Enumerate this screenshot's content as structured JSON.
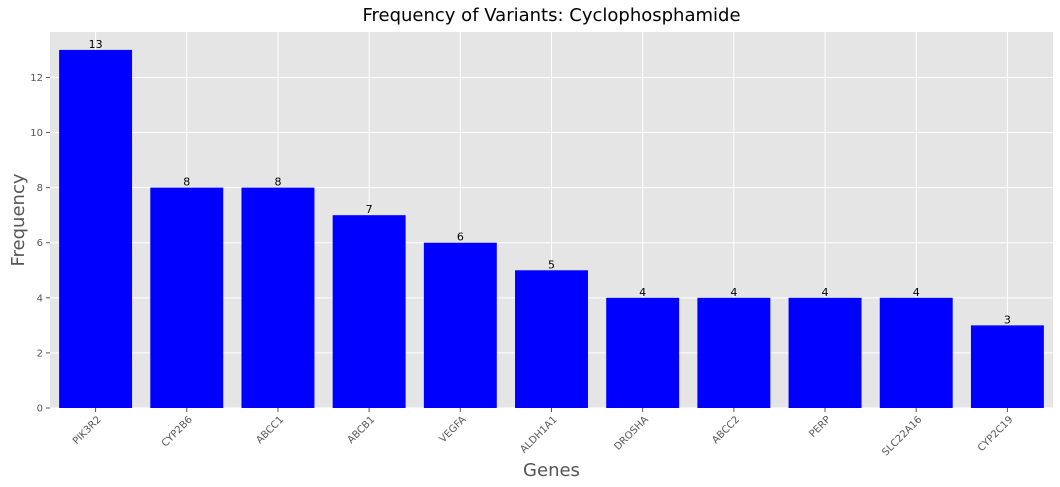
{
  "chart_data": {
    "type": "bar",
    "title": "Frequency of Variants: Cyclophosphamide",
    "xlabel": "Genes",
    "ylabel": "Frequency",
    "categories": [
      "PIK3R2",
      "CYP2B6",
      "ABCC1",
      "ABCB1",
      "VEGFA",
      "ALDH1A1",
      "DROSHA",
      "ABCC2",
      "PERP",
      "SLC22A16",
      "CYP2C19"
    ],
    "values": [
      13,
      8,
      8,
      7,
      6,
      5,
      4,
      4,
      4,
      4,
      3
    ],
    "value_labels": [
      "13",
      "8",
      "8",
      "7",
      "6",
      "5",
      "4",
      "4",
      "4",
      "4",
      "3"
    ],
    "ylim": [
      0,
      13.65
    ],
    "yticks": [
      0,
      2,
      4,
      6,
      8,
      10,
      12
    ],
    "ytick_labels": [
      "0",
      "2",
      "4",
      "6",
      "8",
      "10",
      "12"
    ],
    "grid": true,
    "legend": "none",
    "colors": {
      "bar": "#0000ff",
      "plot_background": "#e5e5e5",
      "grid": "#ffffff",
      "figure_background": "#ffffff"
    }
  }
}
